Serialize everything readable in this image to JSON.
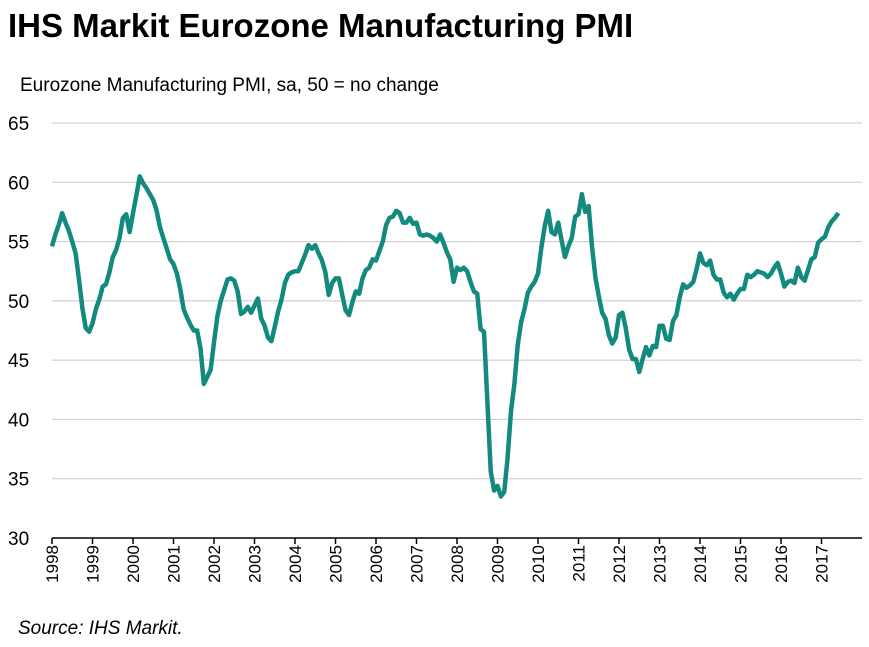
{
  "chart_data": {
    "type": "line",
    "title": "IHS Markit Eurozone Manufacturing PMI",
    "subtitle": "Eurozone Manufacturing PMI, sa, 50 = no change",
    "source": "Source: IHS Markit.",
    "ylim": [
      30,
      65
    ],
    "yticks": [
      30,
      35,
      40,
      45,
      50,
      55,
      60,
      65
    ],
    "grid": true,
    "categories": [
      "1998",
      null,
      null,
      null,
      null,
      null,
      null,
      null,
      null,
      null,
      null,
      null,
      "1999",
      null,
      null,
      null,
      null,
      null,
      null,
      null,
      null,
      null,
      null,
      null,
      "2000",
      null,
      null,
      null,
      null,
      null,
      null,
      null,
      null,
      null,
      null,
      null,
      "2001",
      null,
      null,
      null,
      null,
      null,
      null,
      null,
      null,
      null,
      null,
      null,
      "2002",
      null,
      null,
      null,
      null,
      null,
      null,
      null,
      null,
      null,
      null,
      null,
      "2003",
      null,
      null,
      null,
      null,
      null,
      null,
      null,
      null,
      null,
      null,
      null,
      "2004",
      null,
      null,
      null,
      null,
      null,
      null,
      null,
      null,
      null,
      null,
      null,
      "2005",
      null,
      null,
      null,
      null,
      null,
      null,
      null,
      null,
      null,
      null,
      null,
      "2006",
      null,
      null,
      null,
      null,
      null,
      null,
      null,
      null,
      null,
      null,
      null,
      "2007",
      null,
      null,
      null,
      null,
      null,
      null,
      null,
      null,
      null,
      null,
      null,
      "2008",
      null,
      null,
      null,
      null,
      null,
      null,
      null,
      null,
      null,
      null,
      null,
      "2009",
      null,
      null,
      null,
      null,
      null,
      null,
      null,
      null,
      null,
      null,
      null,
      "2010",
      null,
      null,
      null,
      null,
      null,
      null,
      null,
      null,
      null,
      null,
      null,
      "2011",
      null,
      null,
      null,
      null,
      null,
      null,
      null,
      null,
      null,
      null,
      null,
      "2012",
      null,
      null,
      null,
      null,
      null,
      null,
      null,
      null,
      null,
      null,
      null,
      "2013",
      null,
      null,
      null,
      null,
      null,
      null,
      null,
      null,
      null,
      null,
      null,
      "2014",
      null,
      null,
      null,
      null,
      null,
      null,
      null,
      null,
      null,
      null,
      null,
      "2015",
      null,
      null,
      null,
      null,
      null,
      null,
      null,
      null,
      null,
      null,
      null,
      "2016",
      null,
      null,
      null,
      null,
      null,
      null,
      null,
      null,
      null,
      null,
      null,
      "2017",
      null,
      null,
      null,
      null,
      null
    ],
    "series": [
      {
        "name": "Eurozone Manufacturing PMI",
        "color": "#138a7e",
        "values": [
          54.6,
          55.6,
          56.4,
          57.4,
          56.6,
          55.9,
          55.0,
          54.0,
          51.8,
          49.4,
          47.7,
          47.4,
          48.1,
          49.3,
          50.1,
          51.2,
          51.4,
          52.4,
          53.7,
          54.3,
          55.3,
          57.0,
          57.3,
          55.8,
          57.4,
          58.9,
          60.5,
          59.9,
          59.5,
          59.0,
          58.5,
          57.6,
          56.2,
          55.3,
          54.4,
          53.5,
          53.1,
          52.3,
          51.0,
          49.3,
          48.6,
          48.0,
          47.5,
          47.5,
          46.0,
          43.0,
          43.6,
          44.2,
          46.5,
          48.7,
          50.0,
          50.9,
          51.8,
          51.9,
          51.7,
          50.8,
          48.9,
          49.1,
          49.5,
          49.0,
          49.6,
          50.2,
          48.5,
          47.9,
          46.9,
          46.6,
          47.8,
          49.1,
          50.1,
          51.5,
          52.2,
          52.4,
          52.5,
          52.5,
          53.2,
          53.9,
          54.7,
          54.4,
          54.7,
          54.0,
          53.4,
          52.4,
          50.5,
          51.5,
          51.9,
          51.9,
          50.5,
          49.2,
          48.8,
          49.9,
          50.8,
          50.6,
          51.9,
          52.6,
          52.8,
          53.5,
          53.4,
          54.2,
          55.0,
          56.4,
          57.0,
          57.1,
          57.6,
          57.4,
          56.6,
          56.6,
          57.0,
          56.5,
          56.6,
          55.6,
          55.5,
          55.6,
          55.5,
          55.3,
          55.0,
          55.6,
          54.9,
          54.1,
          53.5,
          51.6,
          52.8,
          52.6,
          52.8,
          52.5,
          51.6,
          50.8,
          50.6,
          47.6,
          47.4,
          41.5,
          35.6,
          34.0,
          34.4,
          33.5,
          33.9,
          36.8,
          40.7,
          43.0,
          46.3,
          48.2,
          49.3,
          50.7,
          51.2,
          51.6,
          52.3,
          54.5,
          56.3,
          57.6,
          55.8,
          55.6,
          56.6,
          55.1,
          53.7,
          54.6,
          55.3,
          57.1,
          57.3,
          59.0,
          57.5,
          58.0,
          54.6,
          52.0,
          50.4,
          49.0,
          48.5,
          47.1,
          46.4,
          46.9,
          48.8,
          49.0,
          47.7,
          45.9,
          45.1,
          45.1,
          44.0,
          45.1,
          46.1,
          45.4,
          46.2,
          46.1,
          47.9,
          47.9,
          46.8,
          46.7,
          48.3,
          48.8,
          50.3,
          51.4,
          51.1,
          51.3,
          51.6,
          52.7,
          54.0,
          53.2,
          53.0,
          53.4,
          52.2,
          51.8,
          51.8,
          50.7,
          50.3,
          50.6,
          50.1,
          50.6,
          51.0,
          51.0,
          52.2,
          52.0,
          52.2,
          52.5,
          52.4,
          52.3,
          52.0,
          52.3,
          52.8,
          53.2,
          52.3,
          51.2,
          51.6,
          51.7,
          51.5,
          52.8,
          52.0,
          51.7,
          52.6,
          53.5,
          53.7,
          54.9,
          55.2,
          55.4,
          56.2,
          56.7,
          57.0,
          57.4
        ]
      }
    ]
  }
}
